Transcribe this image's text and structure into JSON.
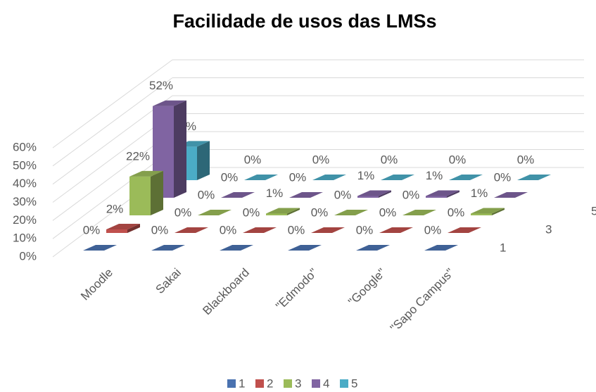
{
  "chart_data": {
    "type": "bar3d",
    "title": "Facilidade de usos das LMSs",
    "categories": [
      "Moodle",
      "Sakai",
      "Blackboard",
      "\"Edmodo\"",
      "\"Google\"",
      "\"Sapo Campus\""
    ],
    "series": [
      {
        "name": "1",
        "color": "#4a72b0",
        "values": [
          0,
          0,
          0,
          0,
          0,
          0
        ],
        "value_labels": [
          "0%",
          "0%",
          "0%",
          "0%",
          "0%",
          "0%"
        ]
      },
      {
        "name": "2",
        "color": "#c0504d",
        "values": [
          2,
          0,
          0,
          0,
          0,
          0
        ],
        "value_labels": [
          "2%",
          "0%",
          "0%",
          "0%",
          "0%",
          "0%"
        ]
      },
      {
        "name": "3",
        "color": "#9bbb59",
        "values": [
          22,
          0,
          1,
          0,
          0,
          1
        ],
        "value_labels": [
          "22%",
          "0%",
          "1%",
          "0%",
          "0%",
          "1%"
        ]
      },
      {
        "name": "4",
        "color": "#8064a2",
        "values": [
          52,
          0,
          0,
          1,
          1,
          0
        ],
        "value_labels": [
          "52%",
          "0%",
          "0%",
          "1%",
          "1%",
          "0%"
        ]
      },
      {
        "name": "5",
        "color": "#4bacc6",
        "values": [
          19,
          0,
          0,
          0,
          0,
          0
        ],
        "value_labels": [
          "19%",
          "0%",
          "0%",
          "0%",
          "0%",
          "0%"
        ]
      }
    ],
    "ylim": [
      0,
      60
    ],
    "yticks": [
      {
        "value": 0,
        "label": "0%"
      },
      {
        "value": 10,
        "label": "10%"
      },
      {
        "value": 20,
        "label": "20%"
      },
      {
        "value": 30,
        "label": "30%"
      },
      {
        "value": 40,
        "label": "40%"
      },
      {
        "value": 50,
        "label": "50%"
      },
      {
        "value": 60,
        "label": "60%"
      }
    ],
    "grid": true,
    "legend": "bottom"
  }
}
